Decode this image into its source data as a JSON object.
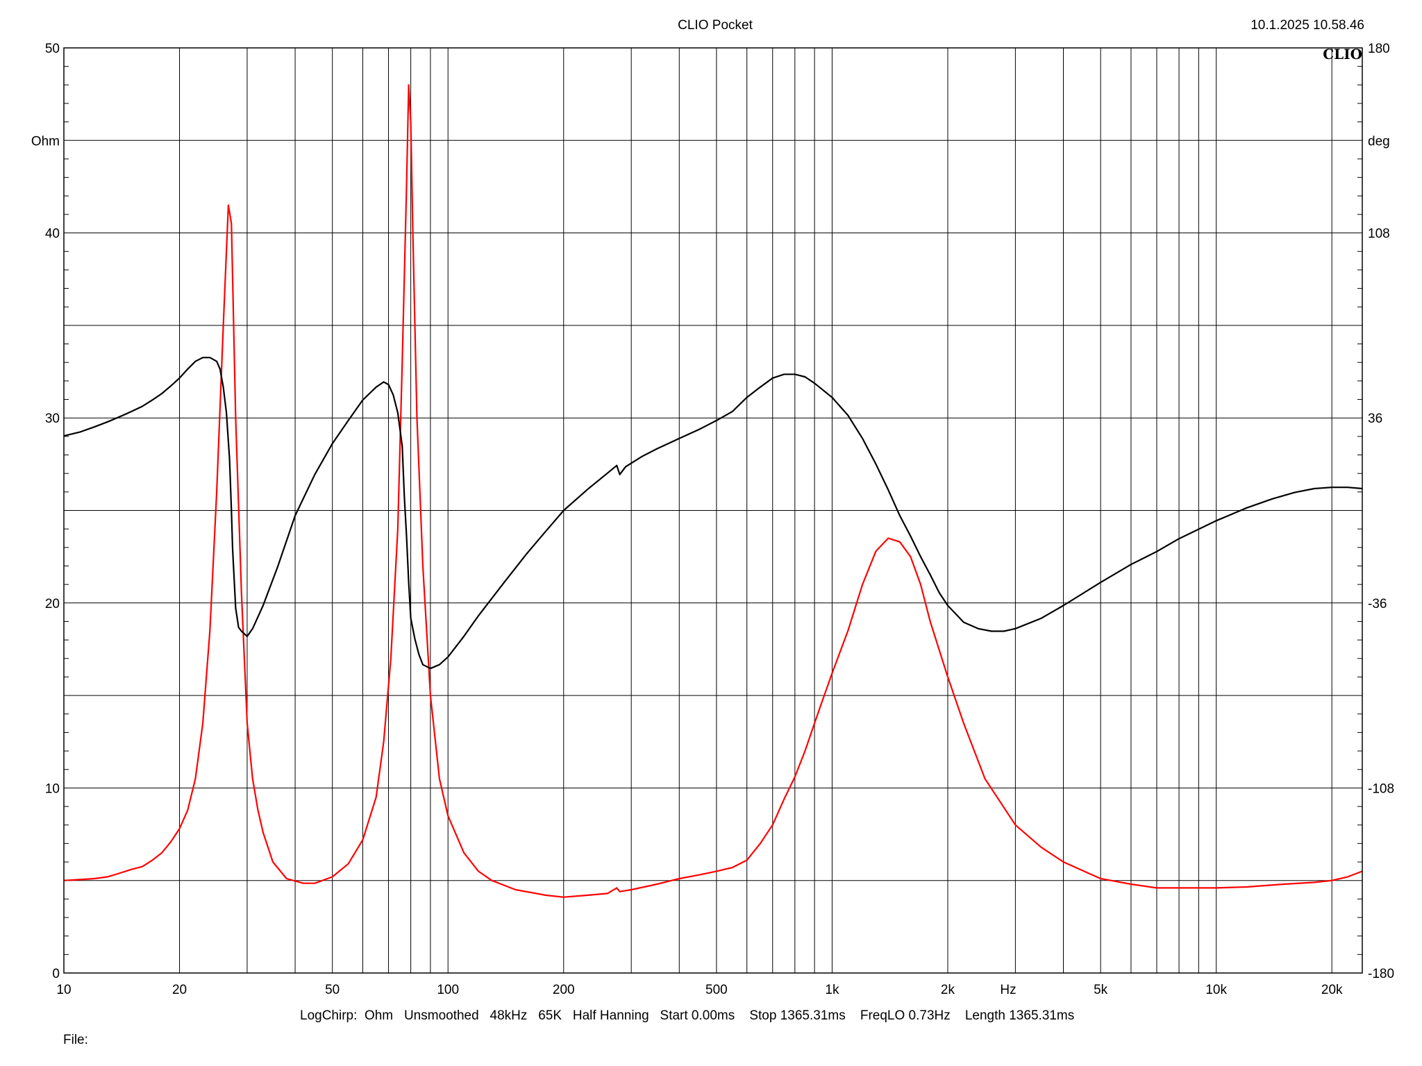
{
  "header": {
    "title": "CLIO Pocket",
    "timestamp": "10.1.2025 10.58.46",
    "logo": "CLIO"
  },
  "footer": {
    "settings": "LogChirp:  Ohm   Unsmoothed   48kHz   65K   Half Hanning   Start 0.00ms    Stop 1365.31ms    FreqLO 0.73Hz    Length 1365.31ms",
    "file_label": "File:"
  },
  "chart_data": {
    "type": "line",
    "xscale": "log",
    "xlim": [
      10,
      24000
    ],
    "xunit": "Hz",
    "x_ticks": [
      {
        "v": 10,
        "label": "10"
      },
      {
        "v": 20,
        "label": "20"
      },
      {
        "v": 50,
        "label": "50"
      },
      {
        "v": 100,
        "label": "100"
      },
      {
        "v": 200,
        "label": "200"
      },
      {
        "v": 500,
        "label": "500"
      },
      {
        "v": 1000,
        "label": "1k"
      },
      {
        "v": 2000,
        "label": "2k"
      },
      {
        "v": 5000,
        "label": "5k"
      },
      {
        "v": 10000,
        "label": "10k"
      },
      {
        "v": 20000,
        "label": "20k"
      }
    ],
    "y_left": {
      "unit": "Ohm",
      "lim": [
        0,
        50
      ],
      "ticks": [
        0,
        10,
        20,
        30,
        40,
        50
      ]
    },
    "y_right": {
      "unit": "deg",
      "lim": [
        -180,
        180
      ],
      "ticks": [
        -180,
        -108,
        -36,
        36,
        108,
        180
      ]
    },
    "grid": true,
    "series": [
      {
        "axis": "left",
        "color": "#ff0000",
        "points": [
          [
            10,
            5.0
          ],
          [
            11,
            5.05
          ],
          [
            12,
            5.1
          ],
          [
            13,
            5.2
          ],
          [
            14,
            5.4
          ],
          [
            15,
            5.6
          ],
          [
            16,
            5.75
          ],
          [
            17,
            6.1
          ],
          [
            18,
            6.5
          ],
          [
            19,
            7.1
          ],
          [
            20,
            7.8
          ],
          [
            21,
            8.8
          ],
          [
            22,
            10.5
          ],
          [
            23,
            13.5
          ],
          [
            24,
            18.5
          ],
          [
            25,
            26.0
          ],
          [
            26,
            35.0
          ],
          [
            26.8,
            41.5
          ],
          [
            27.3,
            40.5
          ],
          [
            28,
            30.0
          ],
          [
            29,
            20.5
          ],
          [
            30,
            13.5
          ],
          [
            31,
            10.5
          ],
          [
            32,
            8.8
          ],
          [
            33,
            7.6
          ],
          [
            35,
            6.0
          ],
          [
            38,
            5.1
          ],
          [
            42,
            4.85
          ],
          [
            45,
            4.85
          ],
          [
            50,
            5.2
          ],
          [
            55,
            5.9
          ],
          [
            60,
            7.2
          ],
          [
            65,
            9.5
          ],
          [
            68,
            12.5
          ],
          [
            71,
            17.0
          ],
          [
            74,
            24.0
          ],
          [
            76,
            33.0
          ],
          [
            78,
            42.5
          ],
          [
            79,
            48.0
          ],
          [
            80,
            46.0
          ],
          [
            81,
            40.0
          ],
          [
            83,
            30.0
          ],
          [
            86,
            22.0
          ],
          [
            90,
            15.0
          ],
          [
            95,
            10.5
          ],
          [
            100,
            8.5
          ],
          [
            110,
            6.5
          ],
          [
            120,
            5.5
          ],
          [
            130,
            5.0
          ],
          [
            150,
            4.5
          ],
          [
            180,
            4.2
          ],
          [
            200,
            4.1
          ],
          [
            230,
            4.2
          ],
          [
            260,
            4.3
          ],
          [
            275,
            4.6
          ],
          [
            280,
            4.4
          ],
          [
            300,
            4.5
          ],
          [
            350,
            4.8
          ],
          [
            400,
            5.1
          ],
          [
            450,
            5.3
          ],
          [
            500,
            5.5
          ],
          [
            550,
            5.7
          ],
          [
            600,
            6.1
          ],
          [
            650,
            7.0
          ],
          [
            700,
            8.0
          ],
          [
            750,
            9.4
          ],
          [
            800,
            10.6
          ],
          [
            850,
            12.0
          ],
          [
            900,
            13.5
          ],
          [
            950,
            14.9
          ],
          [
            1000,
            16.2
          ],
          [
            1100,
            18.5
          ],
          [
            1200,
            21.0
          ],
          [
            1300,
            22.8
          ],
          [
            1400,
            23.5
          ],
          [
            1500,
            23.3
          ],
          [
            1600,
            22.5
          ],
          [
            1700,
            21.0
          ],
          [
            1800,
            19.0
          ],
          [
            2000,
            16.0
          ],
          [
            2200,
            13.5
          ],
          [
            2500,
            10.5
          ],
          [
            3000,
            8.0
          ],
          [
            3500,
            6.8
          ],
          [
            4000,
            6.0
          ],
          [
            5000,
            5.1
          ],
          [
            6000,
            4.8
          ],
          [
            7000,
            4.6
          ],
          [
            8000,
            4.6
          ],
          [
            10000,
            4.6
          ],
          [
            12000,
            4.65
          ],
          [
            15000,
            4.8
          ],
          [
            18000,
            4.9
          ],
          [
            20000,
            5.0
          ],
          [
            22000,
            5.2
          ],
          [
            24000,
            5.5
          ]
        ]
      },
      {
        "axis": "right",
        "color": "#000000",
        "points": [
          [
            10,
            29.0
          ],
          [
            11,
            30.5
          ],
          [
            12,
            32.5
          ],
          [
            13,
            34.5
          ],
          [
            14,
            36.5
          ],
          [
            15,
            38.5
          ],
          [
            16,
            40.5
          ],
          [
            17,
            43.0
          ],
          [
            18,
            45.5
          ],
          [
            19,
            48.5
          ],
          [
            20,
            51.5
          ],
          [
            21,
            55.0
          ],
          [
            22,
            58.0
          ],
          [
            23,
            59.5
          ],
          [
            24,
            59.5
          ],
          [
            25,
            58.0
          ],
          [
            25.5,
            55.0
          ],
          [
            26,
            48.0
          ],
          [
            26.5,
            38.0
          ],
          [
            27,
            20.0
          ],
          [
            27.3,
            0.0
          ],
          [
            27.5,
            -15.0
          ],
          [
            28,
            -38.0
          ],
          [
            28.5,
            -45.5
          ],
          [
            29,
            -47.0
          ],
          [
            30,
            -49.0
          ],
          [
            31,
            -46.0
          ],
          [
            33,
            -37.0
          ],
          [
            36,
            -22.0
          ],
          [
            40,
            -2.0
          ],
          [
            45,
            14.0
          ],
          [
            50,
            26.0
          ],
          [
            55,
            35.0
          ],
          [
            60,
            43.0
          ],
          [
            65,
            48.0
          ],
          [
            68,
            50.0
          ],
          [
            70,
            49.0
          ],
          [
            72,
            45.0
          ],
          [
            74,
            38.0
          ],
          [
            76,
            25.0
          ],
          [
            77,
            5.0
          ],
          [
            78,
            -10.0
          ],
          [
            79,
            -28.0
          ],
          [
            80,
            -42.0
          ],
          [
            82,
            -50.0
          ],
          [
            84,
            -56.0
          ],
          [
            86,
            -60.0
          ],
          [
            90,
            -61.5
          ],
          [
            95,
            -60.0
          ],
          [
            100,
            -57.0
          ],
          [
            110,
            -49.0
          ],
          [
            120,
            -41.0
          ],
          [
            140,
            -28.0
          ],
          [
            160,
            -17.0
          ],
          [
            180,
            -8.0
          ],
          [
            200,
            0.0
          ],
          [
            230,
            8.0
          ],
          [
            260,
            14.5
          ],
          [
            275,
            17.5
          ],
          [
            280,
            14.0
          ],
          [
            290,
            17.0
          ],
          [
            320,
            21.0
          ],
          [
            350,
            24.0
          ],
          [
            400,
            28.0
          ],
          [
            450,
            31.5
          ],
          [
            500,
            35.0
          ],
          [
            550,
            38.5
          ],
          [
            600,
            44.0
          ],
          [
            650,
            48.0
          ],
          [
            700,
            51.5
          ],
          [
            750,
            53.0
          ],
          [
            800,
            53.0
          ],
          [
            850,
            52.0
          ],
          [
            900,
            49.5
          ],
          [
            1000,
            44.0
          ],
          [
            1100,
            37.0
          ],
          [
            1200,
            28.0
          ],
          [
            1300,
            18.0
          ],
          [
            1400,
            8.0
          ],
          [
            1500,
            -2.0
          ],
          [
            1600,
            -10.0
          ],
          [
            1700,
            -18.0
          ],
          [
            1800,
            -25.0
          ],
          [
            1900,
            -32.0
          ],
          [
            2000,
            -37.0
          ],
          [
            2200,
            -43.5
          ],
          [
            2400,
            -46.0
          ],
          [
            2600,
            -47.0
          ],
          [
            2800,
            -47.0
          ],
          [
            3000,
            -46.0
          ],
          [
            3500,
            -42.0
          ],
          [
            4000,
            -37.0
          ],
          [
            5000,
            -28.0
          ],
          [
            6000,
            -21.0
          ],
          [
            7000,
            -16.0
          ],
          [
            8000,
            -11.0
          ],
          [
            10000,
            -4.0
          ],
          [
            12000,
            1.0
          ],
          [
            14000,
            4.5
          ],
          [
            16000,
            7.0
          ],
          [
            18000,
            8.5
          ],
          [
            20000,
            9.0
          ],
          [
            22000,
            9.0
          ],
          [
            24000,
            8.5
          ]
        ]
      }
    ]
  }
}
